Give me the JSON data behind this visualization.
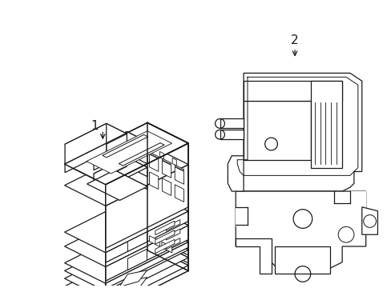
{
  "background_color": "#ffffff",
  "line_color": "#1a1a1a",
  "line_width": 0.9,
  "label1": "1",
  "label2": "2",
  "figsize": [
    4.89,
    3.6
  ],
  "dpi": 100
}
